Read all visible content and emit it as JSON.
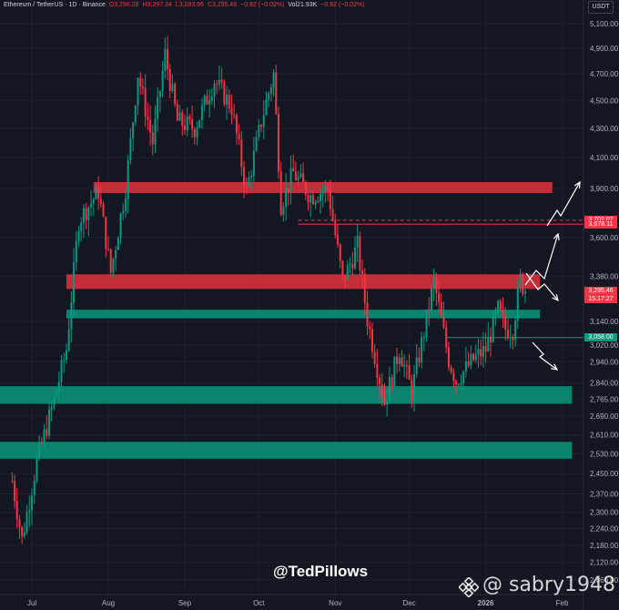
{
  "header": {
    "symbol": "Ethereum / TetherUS · 1D · Binance",
    "open": "O3,296.28",
    "high": "H3,297.34",
    "low": "L3,283.96",
    "close": "C3,295.46",
    "change": "−0.82 (−0.02%)",
    "volume": "Vol21.93K",
    "vol_change": "−0.82 (−0.02%)"
  },
  "unit_label": "USDT",
  "watermark": {
    "author": "@TedPillows",
    "reposter": "@ sabry1948"
  },
  "price_tags": [
    {
      "label": "3,702.07",
      "color": "#f23645"
    },
    {
      "label": "3,678.11",
      "color": "#f23645"
    },
    {
      "label": "3,295.46",
      "color": "#f23645"
    },
    {
      "label": "15:17:27",
      "color": "#f23645"
    },
    {
      "label": "3,058.00",
      "color": "#089981"
    }
  ],
  "colors": {
    "up": "#089981",
    "down": "#f23645",
    "resistance": "#cd2d3a",
    "support": "#0b8a72",
    "background": "#131722"
  },
  "chart_data": {
    "type": "candlestick",
    "title": "",
    "x_tick_labels": [
      "Jul",
      "Aug",
      "Sep",
      "Oct",
      "Nov",
      "Dec",
      "2026",
      "Feb"
    ],
    "x_tick_dates": [
      "2025-07-01",
      "2025-08-01",
      "2025-09-01",
      "2025-10-01",
      "2025-11-01",
      "2025-12-01",
      "2026-01-01",
      "2026-02-01"
    ],
    "y_scale": "log",
    "ylim": [
      2060,
      5150
    ],
    "y_tick_labels": [
      "5,100.00",
      "4,900.00",
      "4,700.00",
      "4,500.00",
      "4,300.00",
      "4,100.00",
      "3,900.00",
      "3,600.00",
      "3,380.00",
      "3,140.00",
      "3,020.00",
      "2,940.00",
      "2,840.00",
      "2,765.00",
      "2,690.00",
      "2,610.00",
      "2,530.00",
      "2,450.00",
      "2,370.00",
      "2,300.00",
      "2,240.00",
      "2,180.00",
      "2,120.00",
      "2,060.00"
    ],
    "y_ticks": [
      5100,
      4900,
      4700,
      4500,
      4300,
      4100,
      3900,
      3600,
      3380,
      3140,
      3020,
      2940,
      2840,
      2765,
      2690,
      2610,
      2530,
      2450,
      2370,
      2300,
      2240,
      2180,
      2120,
      2060
    ],
    "series_keypoints": [
      {
        "date": "2025-06-23",
        "close": 2420
      },
      {
        "date": "2025-06-27",
        "close": 2200
      },
      {
        "date": "2025-07-03",
        "close": 2500
      },
      {
        "date": "2025-07-10",
        "close": 2760
      },
      {
        "date": "2025-07-15",
        "close": 3000
      },
      {
        "date": "2025-07-20",
        "close": 3700
      },
      {
        "date": "2025-07-28",
        "close": 3880
      },
      {
        "date": "2025-08-02",
        "close": 3400
      },
      {
        "date": "2025-08-08",
        "close": 3900
      },
      {
        "date": "2025-08-13",
        "close": 4700
      },
      {
        "date": "2025-08-19",
        "close": 4200
      },
      {
        "date": "2025-08-24",
        "close": 4850
      },
      {
        "date": "2025-08-29",
        "close": 4350
      },
      {
        "date": "2025-09-05",
        "close": 4300
      },
      {
        "date": "2025-09-13",
        "close": 4650
      },
      {
        "date": "2025-09-20",
        "close": 4450
      },
      {
        "date": "2025-09-26",
        "close": 3880
      },
      {
        "date": "2025-10-02",
        "close": 4350
      },
      {
        "date": "2025-10-07",
        "close": 4700
      },
      {
        "date": "2025-10-10",
        "close": 3800
      },
      {
        "date": "2025-10-15",
        "close": 4000
      },
      {
        "date": "2025-10-22",
        "close": 3850
      },
      {
        "date": "2025-10-29",
        "close": 3900
      },
      {
        "date": "2025-11-04",
        "close": 3350
      },
      {
        "date": "2025-11-10",
        "close": 3550
      },
      {
        "date": "2025-11-14",
        "close": 3150
      },
      {
        "date": "2025-11-21",
        "close": 2750
      },
      {
        "date": "2025-11-27",
        "close": 3000
      },
      {
        "date": "2025-12-02",
        "close": 2800
      },
      {
        "date": "2025-12-08",
        "close": 3150
      },
      {
        "date": "2025-12-11",
        "close": 3350
      },
      {
        "date": "2025-12-17",
        "close": 2950
      },
      {
        "date": "2025-12-20",
        "close": 2850
      },
      {
        "date": "2025-12-27",
        "close": 2950
      },
      {
        "date": "2026-01-01",
        "close": 3000
      },
      {
        "date": "2026-01-06",
        "close": 3200
      },
      {
        "date": "2026-01-09",
        "close": 3100
      },
      {
        "date": "2026-01-12",
        "close": 3100
      },
      {
        "date": "2026-01-15",
        "close": 3360
      },
      {
        "date": "2026-01-17",
        "close": 3295
      }
    ],
    "zones": [
      {
        "kind": "resistance",
        "low": 3870,
        "high": 3940,
        "start": "2025-07-26",
        "end": "2026-01-28"
      },
      {
        "kind": "resistance",
        "low": 3310,
        "high": 3390,
        "start": "2025-07-15",
        "end": "2026-01-23"
      },
      {
        "kind": "support",
        "low": 3155,
        "high": 3200,
        "start": "2025-07-15",
        "end": "2026-01-23"
      },
      {
        "kind": "support",
        "low": 2745,
        "high": 2825,
        "start": "2025-06-01",
        "end": "2026-02-05"
      },
      {
        "kind": "support",
        "low": 2510,
        "high": 2580,
        "start": "2025-06-01",
        "end": "2026-02-05"
      }
    ],
    "levels": [
      {
        "price": 3702.07,
        "style": "dashed",
        "color": "#f23645",
        "start": "2025-10-17"
      },
      {
        "price": 3678.11,
        "style": "solid",
        "color": "#f23645",
        "start": "2025-10-17"
      },
      {
        "price": 3058.0,
        "style": "solid",
        "color": "#089981",
        "start": "2025-12-16"
      }
    ]
  }
}
